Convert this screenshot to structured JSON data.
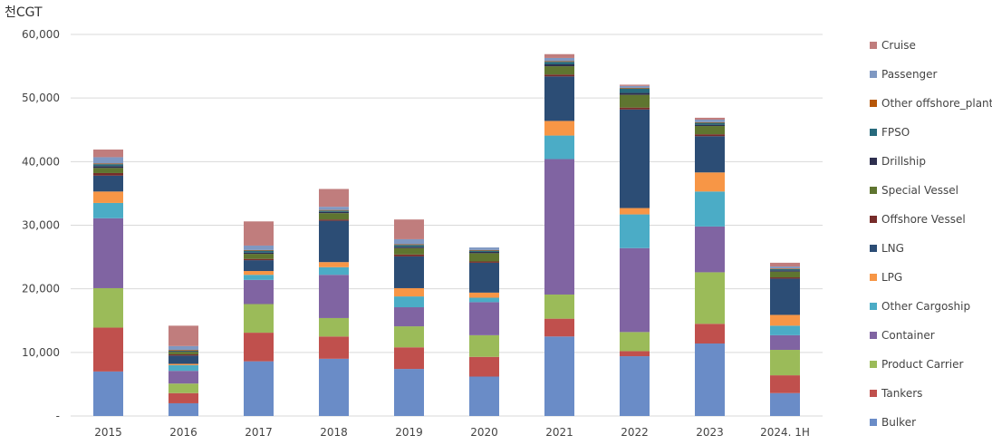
{
  "chart_data": {
    "type": "bar",
    "stacked": true,
    "unit_label": "천CGT",
    "title": "",
    "xlabel": "",
    "ylabel": "",
    "ylim": [
      0,
      60000
    ],
    "y_ticks": [
      "-",
      "10,000",
      "20,000",
      "30,000",
      "40,000",
      "50,000",
      "60,000"
    ],
    "grid": true,
    "legend_position": "right",
    "categories": [
      "2015",
      "2016",
      "2017",
      "2018",
      "2019",
      "2020",
      "2021",
      "2022",
      "2023",
      "2024. 1H"
    ],
    "series": [
      {
        "name": "Bulker",
        "color": "#6a8cc7",
        "values": [
          7000,
          2000,
          8600,
          9000,
          7400,
          6200,
          12500,
          9400,
          11400,
          3600
        ]
      },
      {
        "name": "Tankers",
        "color": "#c0504d",
        "values": [
          6900,
          1600,
          4500,
          3500,
          3400,
          3100,
          2800,
          800,
          3100,
          2800
        ]
      },
      {
        "name": "Product Carrier",
        "color": "#9bbb59",
        "values": [
          6200,
          1500,
          4500,
          2900,
          3300,
          3400,
          3800,
          3000,
          8100,
          4000
        ]
      },
      {
        "name": "Container",
        "color": "#8064a2",
        "values": [
          11000,
          2000,
          3800,
          6800,
          3000,
          5200,
          21300,
          13200,
          7200,
          2300
        ]
      },
      {
        "name": "Other Cargoship",
        "color": "#4bacc6",
        "values": [
          2400,
          900,
          800,
          1200,
          1700,
          700,
          3700,
          5300,
          5500,
          1500
        ]
      },
      {
        "name": "LPG",
        "color": "#f79646",
        "values": [
          1800,
          200,
          600,
          800,
          1300,
          800,
          2300,
          1000,
          3000,
          1700
        ]
      },
      {
        "name": "LNG",
        "color": "#2c4d75",
        "values": [
          2500,
          1300,
          1700,
          6500,
          5000,
          4700,
          7000,
          15500,
          5700,
          5700
        ]
      },
      {
        "name": "Offshore Vessel",
        "color": "#772c2a",
        "values": [
          400,
          200,
          200,
          200,
          300,
          200,
          300,
          300,
          300,
          200
        ]
      },
      {
        "name": "Special Vessel",
        "color": "#5f7530",
        "values": [
          800,
          400,
          800,
          1000,
          1000,
          1300,
          1300,
          2000,
          1300,
          900
        ]
      },
      {
        "name": "Drillship",
        "color": "#2e2f4f",
        "values": [
          300,
          100,
          200,
          200,
          200,
          200,
          300,
          300,
          200,
          200
        ]
      },
      {
        "name": "FPSO",
        "color": "#276a7c",
        "values": [
          300,
          100,
          300,
          200,
          300,
          200,
          400,
          700,
          300,
          200
        ]
      },
      {
        "name": "Other offshore_plant",
        "color": "#b65708",
        "values": [
          100,
          100,
          100,
          100,
          100,
          100,
          100,
          100,
          100,
          100
        ]
      },
      {
        "name": "Passenger",
        "color": "#7f98c2",
        "values": [
          1000,
          600,
          700,
          500,
          800,
          400,
          500,
          300,
          400,
          300
        ]
      },
      {
        "name": "Cruise",
        "color": "#c07d7d",
        "values": [
          1200,
          3200,
          3800,
          2800,
          3100,
          0,
          600,
          200,
          300,
          600
        ]
      }
    ]
  }
}
